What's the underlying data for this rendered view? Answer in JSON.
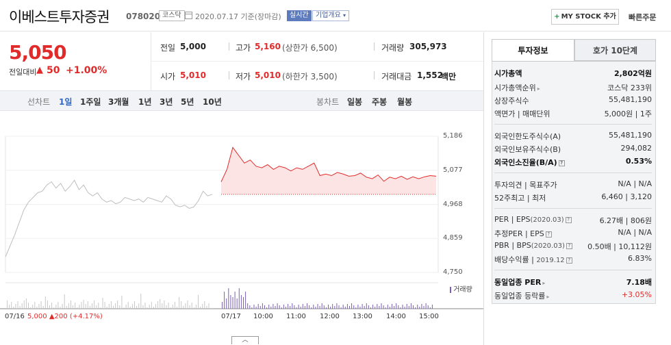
{
  "header": {
    "company": "이베스트투자증권",
    "code": "078020",
    "market": "코스닥",
    "as_of": "2020.07.17 기준(장마감)",
    "realtime": "실시간",
    "overview": "기업개요",
    "mystock": "MY STOCK 추가",
    "quick_order": "빠른주문"
  },
  "price": {
    "current": "5,050",
    "change_label": "전일대비",
    "change": "50",
    "change_rate": "+1.00%",
    "color": "#e12b2b"
  },
  "info": {
    "prev_close_label": "전일",
    "prev_close": "5,000",
    "high_label": "고가",
    "high": "5,160",
    "upper_limit": "(상한가 6,500)",
    "volume_label": "거래량",
    "volume": "305,973",
    "open_label": "시가",
    "open": "5,010",
    "low_label": "저가",
    "low": "5,010",
    "lower_limit": "(하한가 3,500)",
    "amount_label": "거래대금",
    "amount": "1,552",
    "amount_unit": "백만"
  },
  "period_bar": {
    "line_label": "선차트",
    "line_options": [
      "1일",
      "1주일",
      "3개월",
      "1년",
      "3년",
      "5년",
      "10년"
    ],
    "active": "1일",
    "candle_label": "봉차트",
    "candle_options": [
      "일봉",
      "주봉",
      "월봉"
    ]
  },
  "chart_data": {
    "type": "line",
    "ylim": [
      4750,
      5186
    ],
    "y_ticks": [
      "5,186",
      "5,077",
      "4,968",
      "4,859",
      "4,750"
    ],
    "x_ticks": [
      "07/16",
      "07/17",
      "10:00",
      "11:00",
      "12:00",
      "13:00",
      "14:00",
      "15:00"
    ],
    "prev_close": 5000,
    "volume_legend": "거래량",
    "prev_day": {
      "label": "07/16",
      "price": "5,000",
      "change": "200",
      "rate": "(+4.17%)",
      "values": [
        4800,
        4835,
        4870,
        4910,
        4950,
        4975,
        4990,
        5005,
        5010,
        5030,
        5040,
        5020,
        5035,
        5010,
        5025,
        5045,
        5015,
        5030,
        5005,
        4995,
        5005,
        4985,
        4975,
        4980,
        4970,
        4975,
        4990,
        4985,
        4980,
        4985,
        4975,
        4990,
        4985,
        4980,
        4975,
        4995,
        4985,
        4965,
        4960,
        4965,
        4955,
        4960,
        4980,
        5010,
        4995,
        5000
      ]
    },
    "today": {
      "label": "07/17",
      "values": [
        5040,
        5080,
        5150,
        5125,
        5100,
        5110,
        5090,
        5085,
        5095,
        5080,
        5090,
        5085,
        5075,
        5085,
        5080,
        5090,
        5100,
        5060,
        5065,
        5060,
        5070,
        5065,
        5058,
        5060,
        5068,
        5055,
        5050,
        5062,
        5042,
        5055,
        5050,
        5058,
        5048,
        5056,
        5050,
        5056,
        5060,
        5058
      ]
    },
    "colors": {
      "today": "#e12b2b",
      "prev": "#bdbdbd",
      "fill": "#fde4e4",
      "volume_today": "#7a5fb5",
      "volume_prev": "#c8c8c8"
    }
  },
  "side": {
    "tabs": [
      "투자정보",
      "호가 10단계"
    ],
    "group1": [
      {
        "k": "시가총액",
        "v": "2,802억원",
        "bold": true
      },
      {
        "k": "시가총액순위",
        "v": "코스닥 233위"
      },
      {
        "k": "상장주식수",
        "v": "55,481,190"
      },
      {
        "k": "액면가 | 매매단위",
        "v": "5,000원 | 1주"
      }
    ],
    "group2": [
      {
        "k": "외국인한도주식수(A)",
        "v": "55,481,190"
      },
      {
        "k": "외국인보유주식수(B)",
        "v": "294,082"
      },
      {
        "k": "외국인소진율(B/A)",
        "v": "0.53%",
        "bold": true
      }
    ],
    "group3": [
      {
        "k": "투자의견 | 목표주가",
        "v": "N/A | N/A"
      },
      {
        "k": "52주최고 | 최저",
        "v": "6,460 | 3,120"
      }
    ],
    "group4": [
      {
        "k": "PER | EPS",
        "year": "(2020.03)",
        "v": "6.27배 | 806원"
      },
      {
        "k": "추정PER | EPS",
        "year": "",
        "v": "N/A | N/A"
      },
      {
        "k": "PBR | BPS",
        "year": "(2020.03)",
        "v": "0.50배 | 10,112원"
      },
      {
        "k": "배당수익률 |",
        "year": "2019.12",
        "v": "6.83%"
      }
    ],
    "group5": [
      {
        "k": "동일업종 PER",
        "v": "7.18배",
        "bold": true
      },
      {
        "k": "동일업종 등락률",
        "v": "+3.05%",
        "red": true
      }
    ]
  }
}
